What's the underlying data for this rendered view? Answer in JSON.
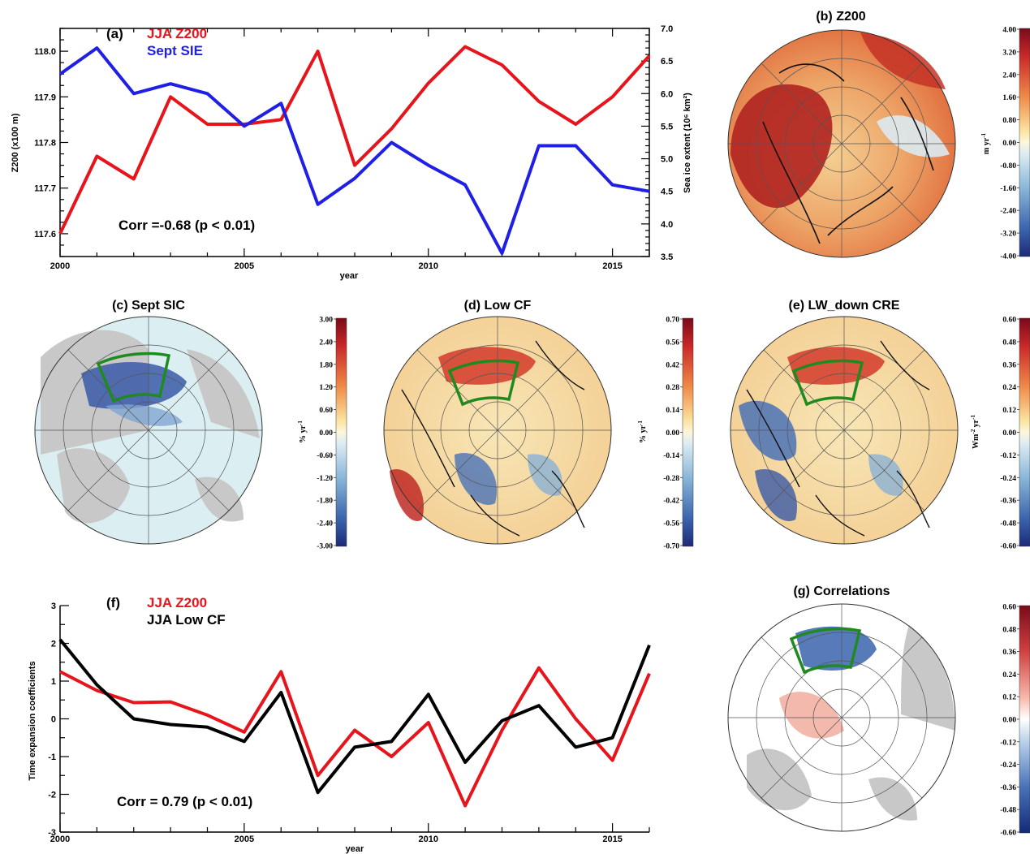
{
  "chart_data": [
    {
      "panel": "a",
      "type": "line",
      "panel_label": "(a)",
      "x": [
        2000,
        2001,
        2002,
        2003,
        2004,
        2005,
        2006,
        2007,
        2008,
        2009,
        2010,
        2011,
        2012,
        2013,
        2014,
        2015,
        2016
      ],
      "series": [
        {
          "name": "JJA Z200",
          "color": "#e8141b",
          "axis": "left",
          "values": [
            117.6,
            117.77,
            117.72,
            117.9,
            117.84,
            117.84,
            117.85,
            118.0,
            117.75,
            117.83,
            117.93,
            118.01,
            117.97,
            117.89,
            117.84,
            117.9,
            117.99
          ]
        },
        {
          "name": "Sept SIE",
          "color": "#1f1fe6",
          "axis": "right",
          "values": [
            6.3,
            6.7,
            6.0,
            6.15,
            6.0,
            5.5,
            5.85,
            4.3,
            4.7,
            5.25,
            4.9,
            4.6,
            3.55,
            5.2,
            5.2,
            4.6,
            4.5
          ]
        }
      ],
      "xlabel": "year",
      "ylabel": "Z200 (x100 m)",
      "ylabel_right": "Sea ice extent (10⁶ km²)",
      "xlim": [
        2000,
        2016
      ],
      "ylim": [
        117.55,
        118.05
      ],
      "ylim_right": [
        3.5,
        7.0
      ],
      "xticks": [
        "2000",
        "2005",
        "2010",
        "2015"
      ],
      "yticks": [
        "117.6",
        "117.7",
        "117.8",
        "117.9",
        "118.0"
      ],
      "yticks_right": [
        "3.5",
        "4.0",
        "4.5",
        "5.0",
        "5.5",
        "6.0",
        "6.5",
        "7.0"
      ],
      "annotation": "Corr =-0.68 (p < 0.01)"
    },
    {
      "panel": "f",
      "type": "line",
      "panel_label": "(f)",
      "x": [
        2000,
        2001,
        2002,
        2003,
        2004,
        2005,
        2006,
        2007,
        2008,
        2009,
        2010,
        2011,
        2012,
        2013,
        2014,
        2015,
        2016
      ],
      "series": [
        {
          "name": "JJA Z200",
          "color": "#e8141b",
          "values": [
            1.25,
            0.75,
            0.43,
            0.45,
            0.1,
            -0.35,
            1.25,
            -1.5,
            -0.3,
            -1.0,
            -0.1,
            -2.3,
            -0.3,
            1.35,
            0.0,
            -1.1,
            1.2
          ]
        },
        {
          "name": "JJA Low CF",
          "color": "#000000",
          "values": [
            2.1,
            0.9,
            0.0,
            -0.15,
            -0.22,
            -0.6,
            0.7,
            -1.95,
            -0.75,
            -0.6,
            0.65,
            -1.15,
            -0.05,
            0.35,
            -0.75,
            -0.5,
            1.95
          ]
        }
      ],
      "xlabel": "year",
      "ylabel": "Time expansion coefficients",
      "xlim": [
        2000,
        2016
      ],
      "ylim": [
        -3,
        3
      ],
      "xticks": [
        "2000",
        "2005",
        "2010",
        "2015"
      ],
      "yticks": [
        "-3",
        "-2",
        "-1",
        "0",
        "1",
        "2",
        "3"
      ],
      "annotation": "Corr = 0.79 (p < 0.01)"
    },
    {
      "panel": "b",
      "type": "heatmap",
      "title": "(b) Z200",
      "colorbar_ticks": [
        "4.00",
        "3.20",
        "2.40",
        "1.60",
        "0.80",
        "0.00",
        "-0.80",
        "-1.60",
        "-2.40",
        "-3.20",
        "-4.00"
      ],
      "unit_main": "m yr",
      "unit_sup": "-1"
    },
    {
      "panel": "c",
      "type": "heatmap",
      "title": "(c) Sept SIC",
      "colorbar_ticks": [
        "3.00",
        "2.40",
        "1.80",
        "1.20",
        "0.60",
        "0.00",
        "-0.60",
        "-1.20",
        "-1.80",
        "-2.40",
        "-3.00"
      ],
      "unit_main": "% yr",
      "unit_sup": "-1"
    },
    {
      "panel": "d",
      "type": "heatmap",
      "title": "(d) Low CF",
      "colorbar_ticks": [
        "0.70",
        "0.56",
        "0.42",
        "0.28",
        "0.14",
        "0.00",
        "-0.14",
        "-0.28",
        "-0.42",
        "-0.56",
        "-0.70"
      ],
      "unit_main": "% yr",
      "unit_sup": "-1"
    },
    {
      "panel": "e",
      "type": "heatmap",
      "title": "(e) LW_down CRE",
      "colorbar_ticks": [
        "0.60",
        "0.48",
        "0.36",
        "0.24",
        "0.12",
        "0.00",
        "-0.12",
        "-0.24",
        "-0.36",
        "-0.48",
        "-0.60"
      ],
      "unit_main": "Wm",
      "unit_sup": "-2",
      "unit_main2": " yr",
      "unit_sup2": "-1"
    },
    {
      "panel": "g",
      "type": "heatmap",
      "title": "(g) Correlations",
      "colorbar_ticks": [
        "0.60",
        "0.48",
        "0.36",
        "0.24",
        "0.12",
        "0.00",
        "-0.12",
        "-0.24",
        "-0.36",
        "-0.48",
        "-0.60"
      ]
    }
  ],
  "colors": {
    "red": "#e8141b",
    "blue": "#1f1fe6",
    "black": "#000000",
    "box": "#1f8a1f",
    "land": "#c8c8c8"
  }
}
